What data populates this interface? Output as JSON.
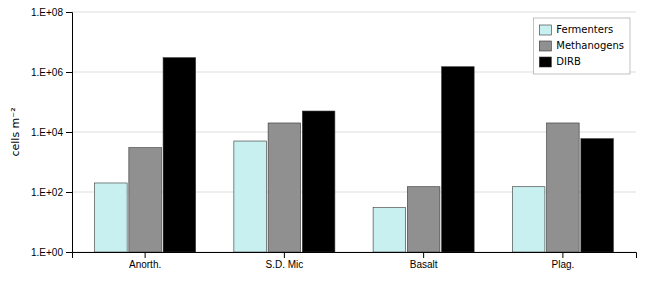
{
  "chart_data": {
    "type": "bar",
    "categories": [
      "Anorth.",
      "S.D. Mic",
      "Basalt",
      "Plag."
    ],
    "series": [
      {
        "name": "Fermenters",
        "color": "#c8f0f0",
        "values": [
          200,
          5000,
          30,
          150
        ]
      },
      {
        "name": "Methanogens",
        "color": "#909090",
        "values": [
          3000,
          20000,
          150,
          20000
        ]
      },
      {
        "name": "DIRB",
        "color": "#000000",
        "values": [
          3000000,
          50000,
          1500000,
          6000
        ]
      }
    ],
    "ylabel": "cells m⁻²",
    "ylim": [
      1,
      100000000
    ],
    "yticks": [
      {
        "value": 1,
        "label": "1.E+00"
      },
      {
        "value": 100,
        "label": "1.E+02"
      },
      {
        "value": 10000,
        "label": "1.E+04"
      },
      {
        "value": 1000000,
        "label": "1.E+06"
      },
      {
        "value": 100000000,
        "label": "1.E+08"
      }
    ],
    "log": "y",
    "grid": true,
    "legend": "upper right"
  }
}
